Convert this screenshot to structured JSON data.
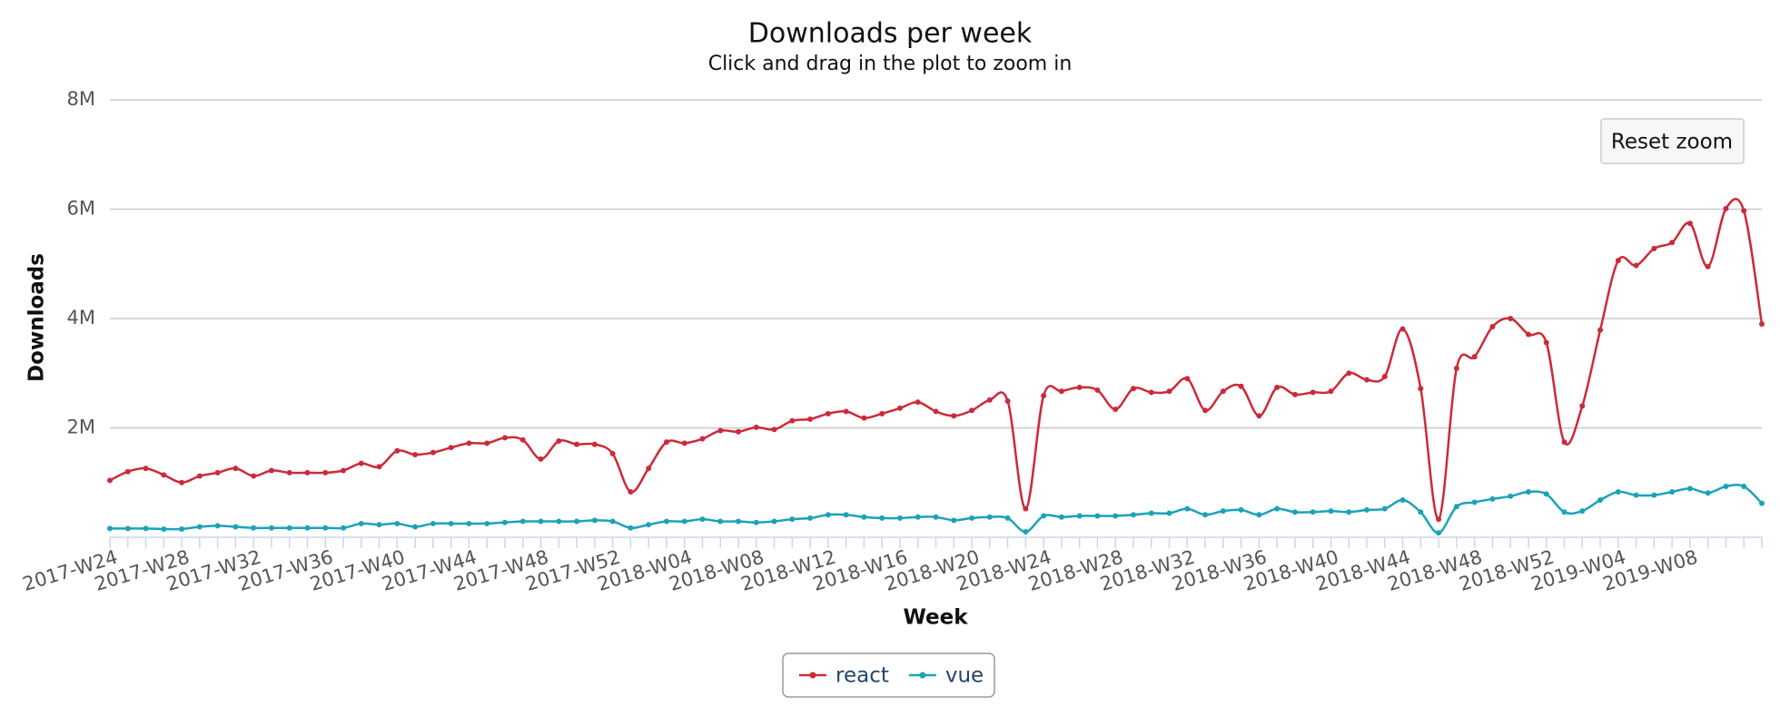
{
  "chart_data": {
    "type": "line",
    "title": "Downloads per week",
    "subtitle": "Click and drag in the plot to zoom in",
    "x_label": "Week",
    "y_label": "Downloads",
    "reset_button": "Reset zoom",
    "categories": [
      "2017-W24",
      null,
      null,
      null,
      "2017-W28",
      null,
      null,
      null,
      "2017-W32",
      null,
      null,
      null,
      "2017-W36",
      null,
      null,
      null,
      "2017-W40",
      null,
      null,
      null,
      "2017-W44",
      null,
      null,
      null,
      "2017-W48",
      null,
      null,
      null,
      "2017-W52",
      null,
      null,
      null,
      "2018-W04",
      null,
      null,
      null,
      "2018-W08",
      null,
      null,
      null,
      "2018-W12",
      null,
      null,
      null,
      "2018-W16",
      null,
      null,
      null,
      "2018-W20",
      null,
      null,
      null,
      "2018-W24",
      null,
      null,
      null,
      "2018-W28",
      null,
      null,
      null,
      "2018-W32",
      null,
      null,
      null,
      "2018-W36",
      null,
      null,
      null,
      "2018-W40",
      null,
      null,
      null,
      "2018-W44",
      null,
      null,
      null,
      "2018-W48",
      null,
      null,
      null,
      "2018-W52",
      null,
      null,
      null,
      "2019-W04",
      null,
      null,
      null,
      "2019-W08",
      null,
      null,
      null,
      null
    ],
    "series": [
      {
        "name": "react",
        "color": "#cc2a3a",
        "values": [
          1040000,
          1200000,
          1260000,
          1140000,
          1000000,
          1120000,
          1180000,
          1260000,
          1120000,
          1220000,
          1180000,
          1180000,
          1180000,
          1220000,
          1350000,
          1290000,
          1580000,
          1510000,
          1550000,
          1640000,
          1720000,
          1720000,
          1820000,
          1780000,
          1430000,
          1760000,
          1700000,
          1700000,
          1530000,
          830000,
          1260000,
          1740000,
          1720000,
          1800000,
          1950000,
          1930000,
          2010000,
          1970000,
          2130000,
          2160000,
          2260000,
          2300000,
          2180000,
          2260000,
          2360000,
          2470000,
          2300000,
          2220000,
          2320000,
          2510000,
          2490000,
          520000,
          2590000,
          2670000,
          2740000,
          2690000,
          2340000,
          2720000,
          2650000,
          2670000,
          2900000,
          2320000,
          2670000,
          2760000,
          2220000,
          2740000,
          2610000,
          2650000,
          2670000,
          3000000,
          2880000,
          2940000,
          3810000,
          2720000,
          330000,
          3090000,
          3300000,
          3850000,
          4000000,
          3710000,
          3560000,
          1740000,
          2400000,
          3790000,
          5060000,
          4970000,
          5280000,
          5390000,
          5740000,
          4950000,
          6010000,
          5970000,
          3900000
        ]
      },
      {
        "name": "vue",
        "color": "#1aa3b8",
        "values": [
          160000,
          160000,
          160000,
          150000,
          150000,
          190000,
          210000,
          190000,
          170000,
          170000,
          170000,
          170000,
          170000,
          170000,
          250000,
          230000,
          250000,
          190000,
          250000,
          250000,
          250000,
          250000,
          270000,
          290000,
          290000,
          290000,
          290000,
          310000,
          290000,
          170000,
          230000,
          290000,
          290000,
          330000,
          290000,
          290000,
          270000,
          290000,
          330000,
          350000,
          410000,
          410000,
          370000,
          350000,
          350000,
          370000,
          370000,
          310000,
          350000,
          370000,
          350000,
          100000,
          390000,
          370000,
          390000,
          390000,
          390000,
          410000,
          440000,
          440000,
          520000,
          410000,
          480000,
          500000,
          410000,
          520000,
          460000,
          460000,
          480000,
          460000,
          500000,
          520000,
          680000,
          460000,
          80000,
          560000,
          640000,
          700000,
          750000,
          830000,
          790000,
          460000,
          480000,
          680000,
          830000,
          770000,
          770000,
          830000,
          890000,
          810000,
          930000,
          930000,
          620000
        ]
      }
    ],
    "ylim": [
      0,
      8000000
    ],
    "yticks": [
      {
        "value": 2000000,
        "label": "2M"
      },
      {
        "value": 4000000,
        "label": "4M"
      },
      {
        "value": 6000000,
        "label": "6M"
      },
      {
        "value": 8000000,
        "label": "8M"
      }
    ],
    "grid": true,
    "legend": "bottom"
  }
}
